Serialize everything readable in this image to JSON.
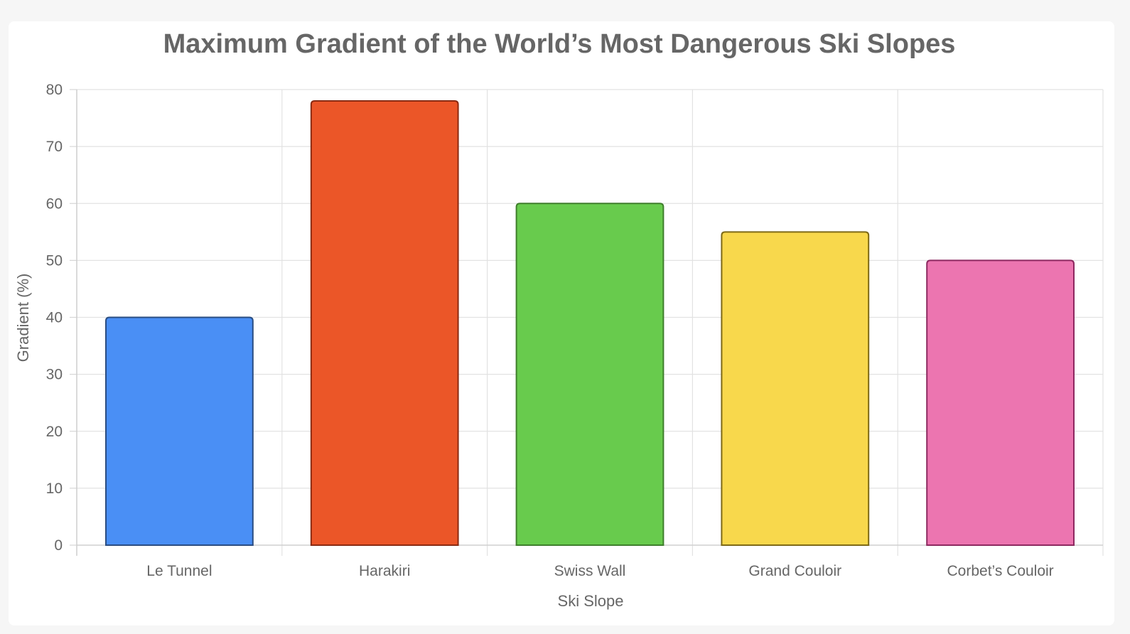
{
  "chart_data": {
    "type": "bar",
    "title": "Maximum Gradient of the World’s Most Dangerous Ski Slopes",
    "xlabel": "Ski Slope",
    "ylabel": "Gradient (%)",
    "categories": [
      "Le Tunnel",
      "Harakiri",
      "Swiss Wall",
      "Grand Couloir",
      "Corbet’s Couloir"
    ],
    "values": [
      40,
      78,
      60,
      55,
      50
    ],
    "ylim": [
      0,
      80
    ],
    "yticks": [
      0,
      10,
      20,
      30,
      40,
      50,
      60,
      70,
      80
    ],
    "grid": true,
    "legend": "none",
    "colors": {
      "fill": [
        "#4a8ff5",
        "#eb5628",
        "#68cb4d",
        "#f8d84c",
        "#ec75b0"
      ],
      "border": [
        "#2a4d82",
        "#8a2a12",
        "#3f7f2c",
        "#7e6a16",
        "#8d2960"
      ]
    }
  }
}
